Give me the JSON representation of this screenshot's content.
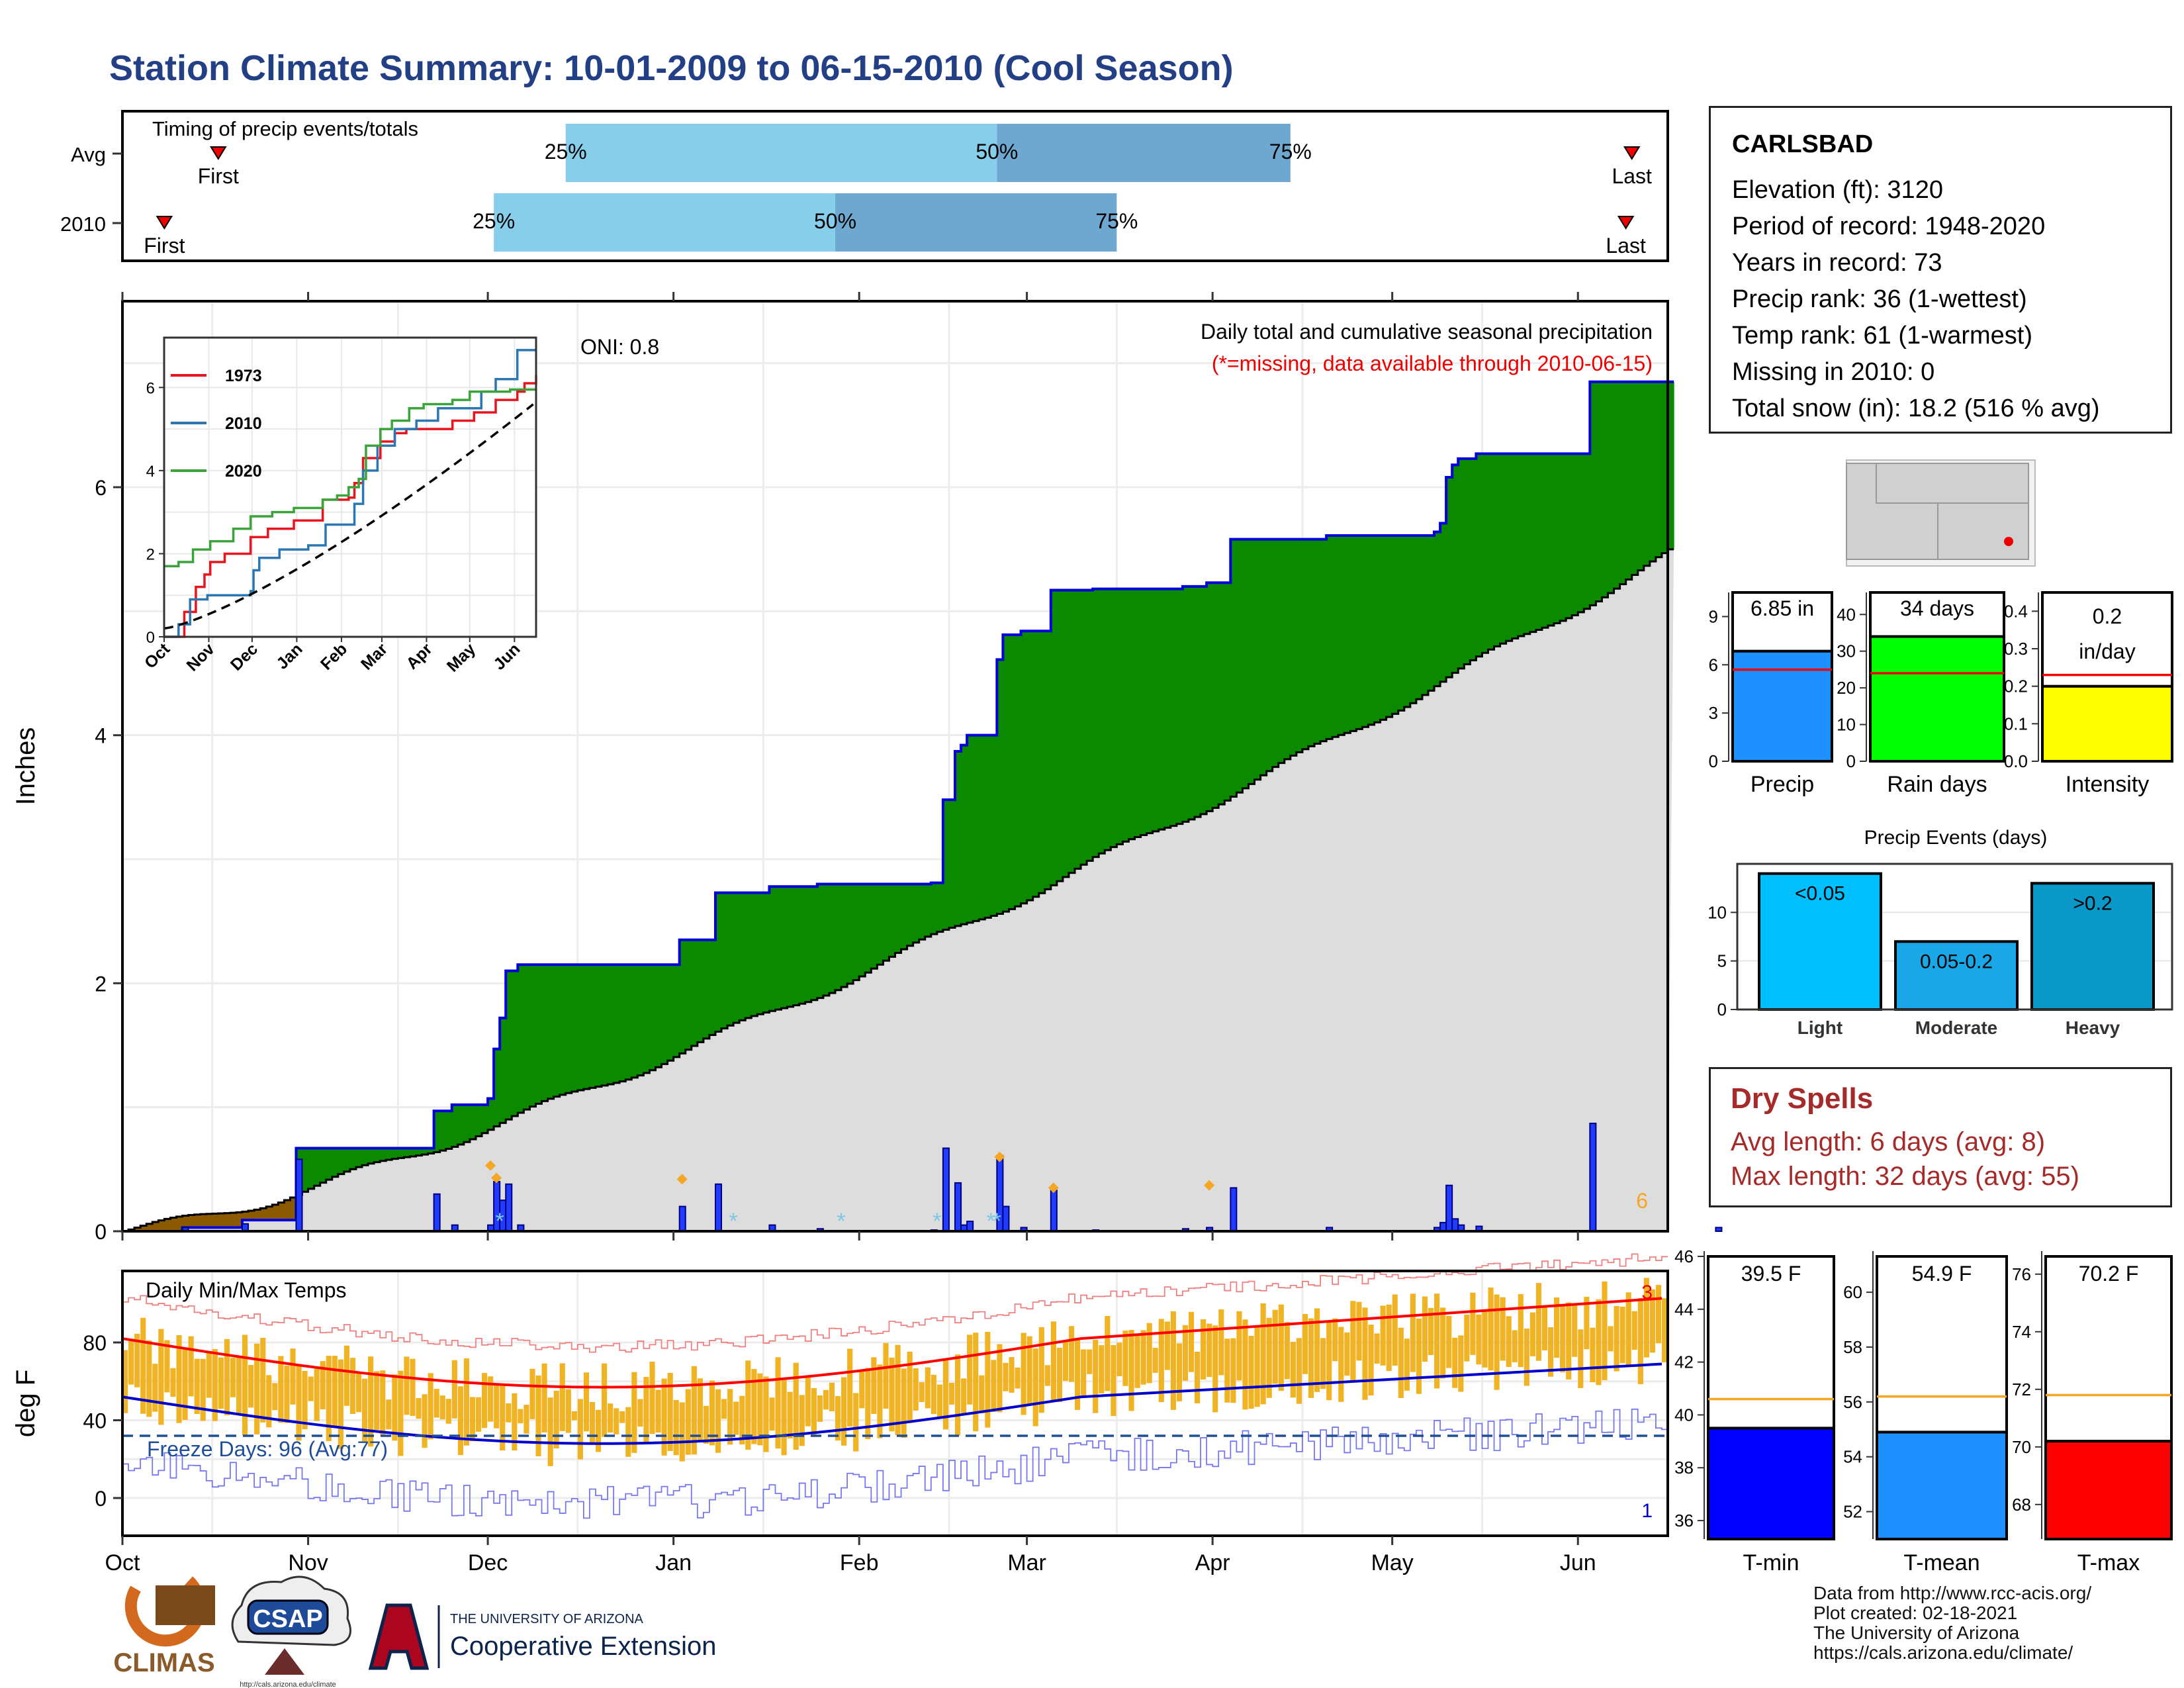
{
  "title": "Station Climate Summary: 10-01-2009 to 06-15-2010 (Cool Season)",
  "colors": {
    "title": "#233f86",
    "precip_fill": "#0b8a00",
    "deficit_fill": "#8b5a00",
    "cum_avg": "#dddddd",
    "cum_line": "#0000dd",
    "tmax": "#ff0000",
    "tmin": "#0000cc",
    "temp_bar": "#f0b323",
    "dry": "#a52a2a"
  },
  "timing": {
    "title": "Timing of precip events/totals",
    "rows": [
      {
        "label": "Avg",
        "first": "First",
        "last": "Last",
        "p25": "25%",
        "p50": "50%",
        "p75": "75%",
        "first_date": "2009-10-17",
        "q25_date": "2009-12-14",
        "q50_date": "2010-02-24",
        "q75_date": "2010-04-14",
        "last_date": "2010-06-10"
      },
      {
        "label": "2010",
        "first": "First",
        "last": "Last",
        "p25": "25%",
        "p50": "50%",
        "p75": "75%",
        "first_date": "2009-10-08",
        "q25_date": "2009-12-02",
        "q50_date": "2010-01-28",
        "q75_date": "2010-03-16",
        "last_date": "2010-06-09"
      }
    ]
  },
  "info": {
    "station": "CARLSBAD",
    "lines": [
      "Elevation (ft): 3120",
      "Period of record: 1948-2020",
      "Years in record: 73",
      "Precip rank: 36 (1-wettest)",
      "Temp rank: 61 (1-warmest)",
      "Missing in 2010: 0",
      "Total snow (in): 18.2 (516 % avg)"
    ]
  },
  "main": {
    "ylabel": "Inches",
    "oni": "ONI: 0.8",
    "note1": "Daily total and cumulative seasonal precipitation",
    "note2": "(*=missing, data available through 2010-06-15)",
    "count_label": "6",
    "yticks": [
      "0",
      "2",
      "4",
      "6"
    ]
  },
  "inset": {
    "legend": [
      "1973",
      "2010",
      "2020"
    ],
    "yticks": [
      "0",
      "2",
      "4",
      "6"
    ],
    "xticks": [
      "Oct",
      "Nov",
      "Dec",
      "Jan",
      "Feb",
      "Mar",
      "Apr",
      "May",
      "Jun"
    ]
  },
  "months": [
    "Oct",
    "Nov",
    "Dec",
    "Jan",
    "Feb",
    "Mar",
    "Apr",
    "May",
    "Jun"
  ],
  "temps": {
    "title": "Daily Min/Max Temps",
    "ylabel": "deg F",
    "freeze": "Freeze Days: 96 (Avg:77)",
    "count_hot": "3",
    "count_cold": "1",
    "yticks": [
      "0",
      "40",
      "80"
    ]
  },
  "summary": {
    "precip": {
      "value": "6.85 in",
      "label": "Precip",
      "yticks": [
        "0",
        "3",
        "6",
        "9"
      ],
      "ymax": 10.5,
      "amount": 6.85,
      "avg": 5.7
    },
    "raindays": {
      "value": "34 days",
      "label": "Rain days",
      "yticks": [
        "0",
        "10",
        "20",
        "30",
        "40"
      ],
      "ymax": 46,
      "amount": 34,
      "avg": 24
    },
    "intensity": {
      "value1": "0.2",
      "value2": "in/day",
      "label": "Intensity",
      "yticks": [
        "0.0",
        "0.1",
        "0.2",
        "0.3",
        "0.4"
      ],
      "ymax": 0.45,
      "amount": 0.2,
      "avg": 0.23
    }
  },
  "events": {
    "title": "Precip Events (days)",
    "yticks": [
      "0",
      "5",
      "10"
    ],
    "bars": [
      {
        "label": "Light",
        "inner": "<0.05",
        "value": 14
      },
      {
        "label": "Moderate",
        "inner": "0.05-0.2",
        "value": 7
      },
      {
        "label": "Heavy",
        "inner": ">0.2",
        "value": 13
      }
    ]
  },
  "dry": {
    "title": "Dry Spells",
    "line1": "Avg length: 6 days (avg: 8)",
    "line2": "Max length: 32 days (avg: 55)"
  },
  "tsum": {
    "tmin": {
      "value": "39.5 F",
      "label": "T-min",
      "yticks": [
        "36",
        "38",
        "40",
        "42",
        "44",
        "46"
      ],
      "amount": 39.5,
      "avg": 40.6
    },
    "tmean": {
      "value": "54.9 F",
      "label": "T-mean",
      "yticks": [
        "52",
        "54",
        "56",
        "58",
        "60"
      ],
      "amount": 54.9,
      "avg": 56.2
    },
    "tmax": {
      "value": "70.2 F",
      "label": "T-max",
      "yticks": [
        "68",
        "70",
        "72",
        "74",
        "76"
      ],
      "amount": 70.2,
      "avg": 71.8
    }
  },
  "logos": {
    "climas": "CLIMAS",
    "csap": "CSAP",
    "csap_url": "http://cals.arizona.edu/climate",
    "ua_small": "THE UNIVERSITY OF ARIZONA",
    "ua_big": "Cooperative Extension"
  },
  "credits": [
    "Data from http://www.rcc-acis.org/",
    "Plot created: 02-18-2021",
    "The University of Arizona",
    "https://cals.arizona.edu/climate/"
  ]
}
